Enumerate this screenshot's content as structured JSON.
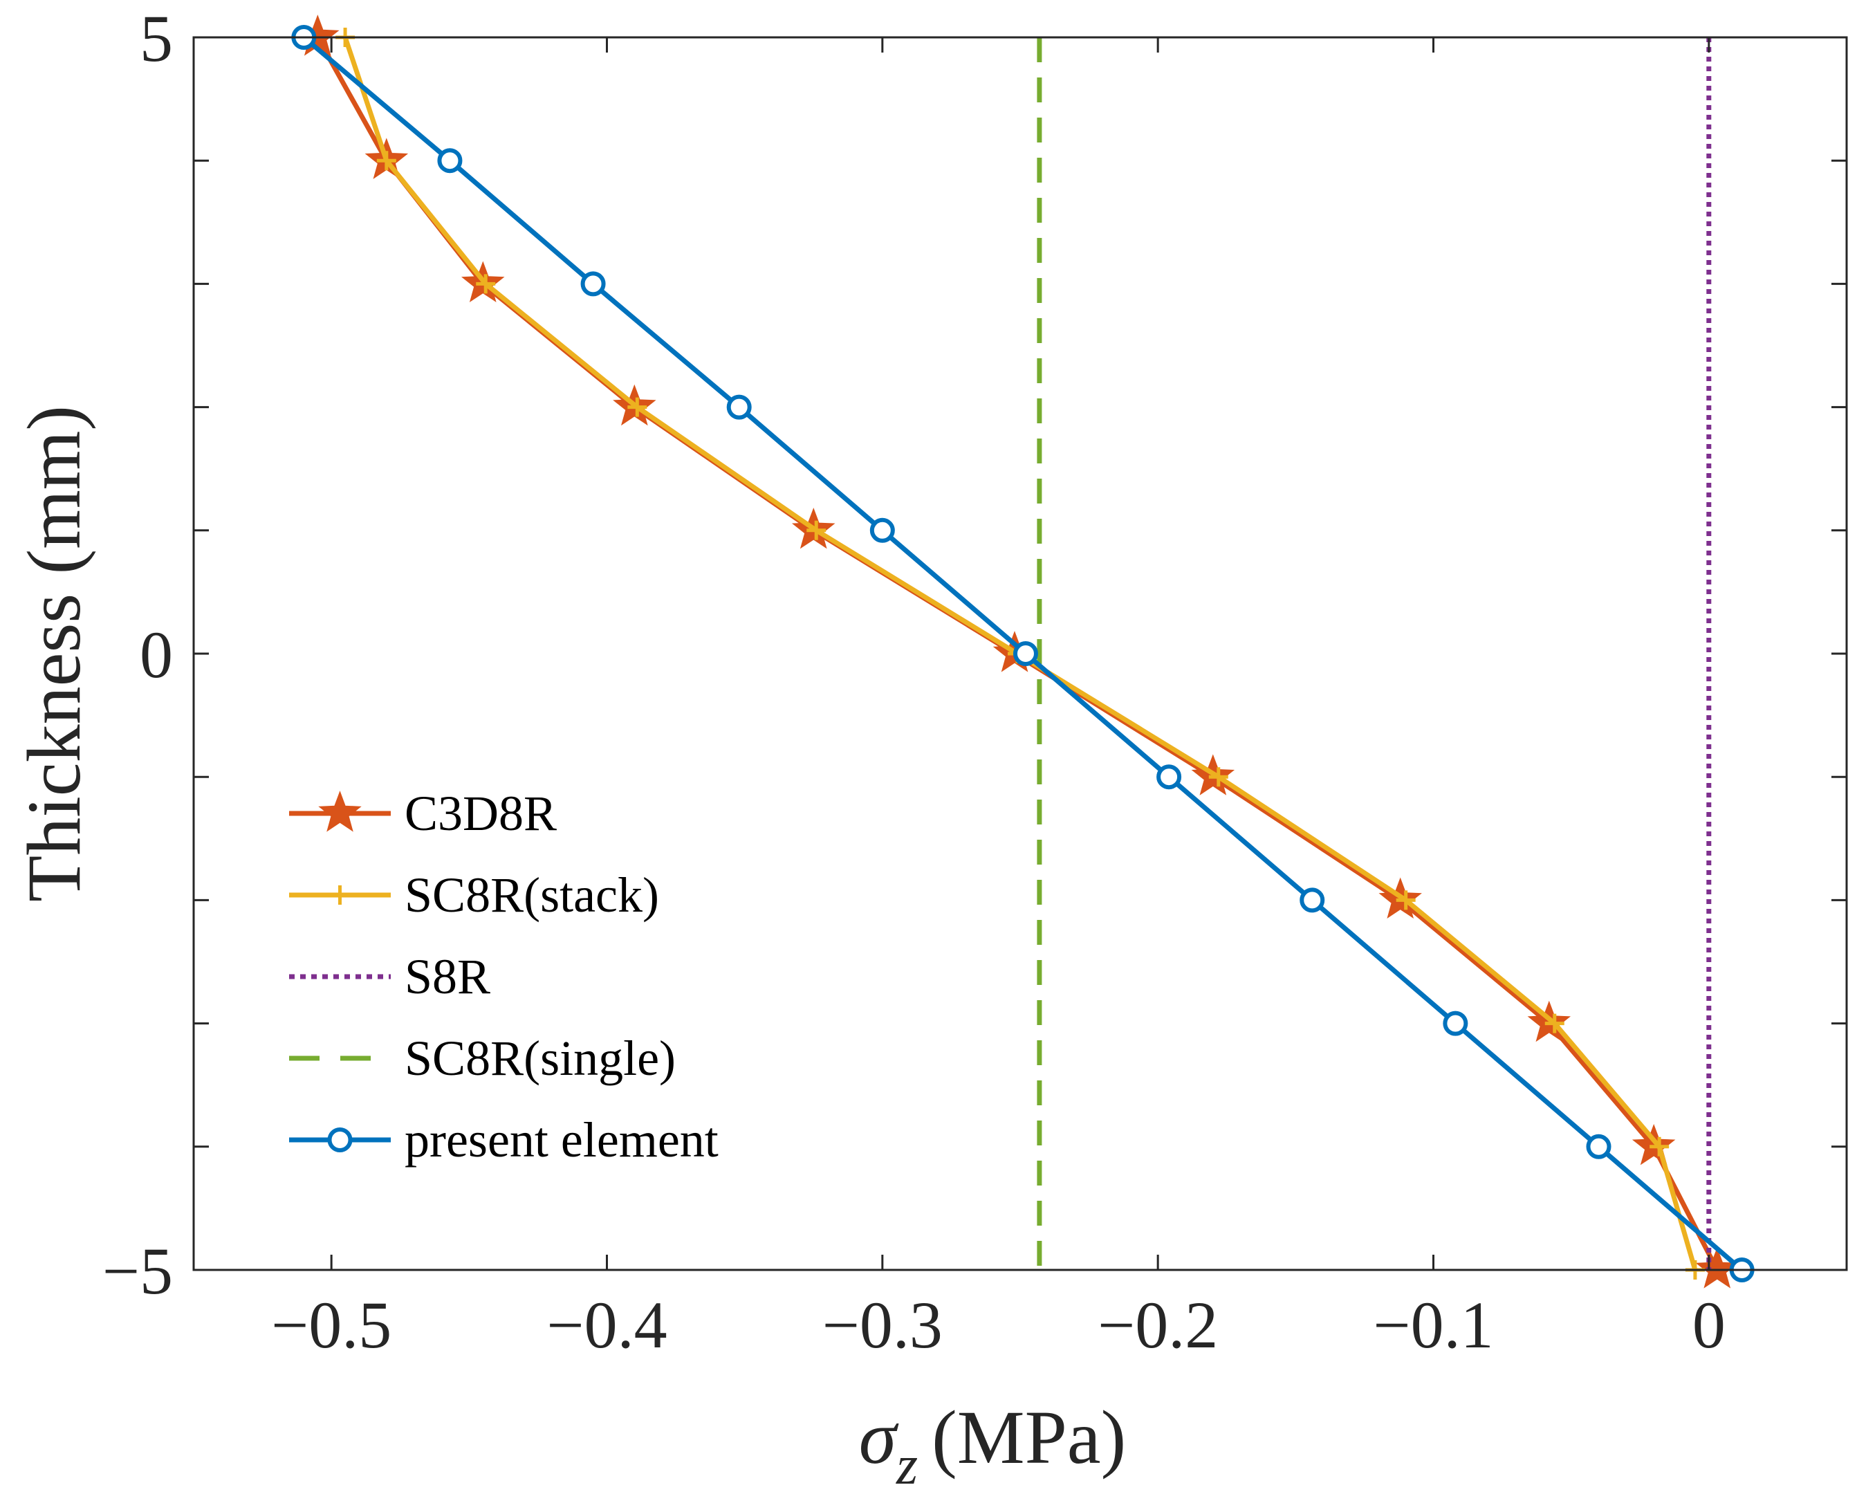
{
  "chart_data": {
    "type": "line",
    "xlabel_symbol": "σ",
    "xlabel_subscript": "z",
    "xlabel_unit": "(MPa)",
    "ylabel": "Thickness (mm)",
    "xlim": [
      -0.55,
      0.05
    ],
    "ylim": [
      -5,
      5
    ],
    "xticks": [
      -0.5,
      -0.4,
      -0.3,
      -0.2,
      -0.1,
      0
    ],
    "xtick_labels": [
      "−0.5",
      "−0.4",
      "−0.3",
      "−0.2",
      "−0.1",
      "0"
    ],
    "yticks": [
      -5,
      0,
      5
    ],
    "ytick_labels": [
      "−5",
      "0",
      "5"
    ],
    "yminor_ticks": [
      -4,
      -3,
      -2,
      -1,
      1,
      2,
      3,
      4
    ],
    "grid": false,
    "legend_position": "lower-left",
    "series": [
      {
        "name": "C3D8R",
        "color": "#D95319",
        "style": "solid",
        "marker": "star",
        "x": [
          -0.505,
          -0.48,
          -0.445,
          -0.39,
          -0.325,
          -0.252,
          -0.18,
          -0.112,
          -0.058,
          -0.02,
          0.003
        ],
        "y": [
          5,
          4,
          3,
          2,
          1,
          0,
          -1,
          -2,
          -3,
          -4,
          -5
        ]
      },
      {
        "name": "SC8R(stack)",
        "color": "#EDB120",
        "style": "solid",
        "marker": "plus",
        "x": [
          -0.495,
          -0.48,
          -0.444,
          -0.389,
          -0.324,
          -0.251,
          -0.178,
          -0.11,
          -0.056,
          -0.018,
          -0.005
        ],
        "y": [
          5,
          4,
          3,
          2,
          1,
          0,
          -1,
          -2,
          -3,
          -4,
          -5
        ]
      },
      {
        "name": "S8R",
        "color": "#7E2F8E",
        "style": "dotted",
        "marker": "none",
        "x": [
          0,
          0
        ],
        "y": [
          5,
          -5
        ]
      },
      {
        "name": "SC8R(single)",
        "color": "#77AC30",
        "style": "dashed",
        "marker": "none",
        "x": [
          -0.243,
          -0.243
        ],
        "y": [
          5,
          -5
        ]
      },
      {
        "name": "present element",
        "color": "#0072BD",
        "style": "solid",
        "marker": "circle",
        "x": [
          -0.51,
          -0.457,
          -0.405,
          -0.352,
          -0.3,
          -0.248,
          -0.196,
          -0.144,
          -0.092,
          -0.04,
          0.012
        ],
        "y": [
          5,
          4,
          3,
          2,
          1,
          0,
          -1,
          -2,
          -3,
          -4,
          -5
        ]
      }
    ]
  }
}
